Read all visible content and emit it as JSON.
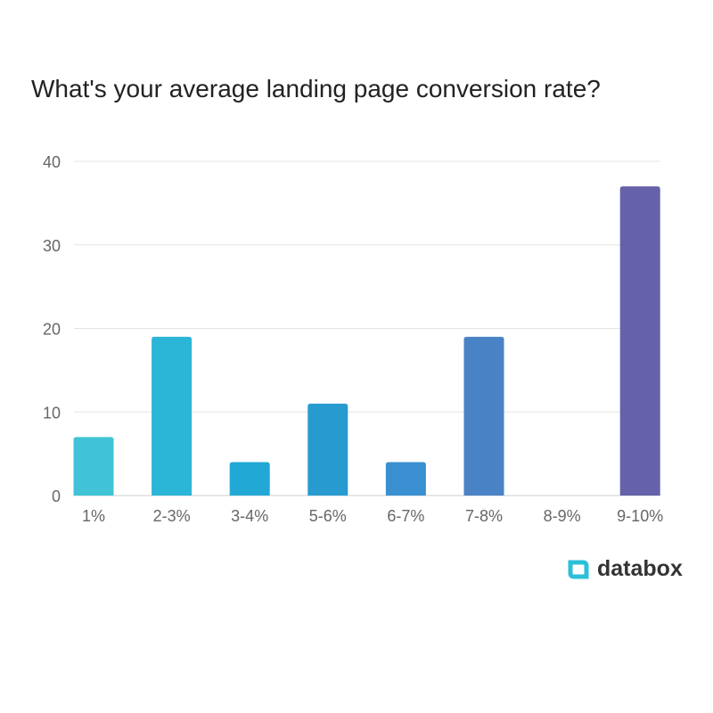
{
  "chart_data": {
    "type": "bar",
    "title": "What's your average landing page conversion rate?",
    "categories": [
      "1%",
      "2-3%",
      "3-4%",
      "5-6%",
      "6-7%",
      "7-8%",
      "8-9%",
      "9-10%"
    ],
    "values": [
      7,
      19,
      4,
      11,
      4,
      19,
      0,
      37
    ],
    "colors": [
      "#40c3d6",
      "#2bb5d6",
      "#22a8d4",
      "#279bd0",
      "#3a8fd0",
      "#4a82c6",
      "#5870b8",
      "#6561aa"
    ],
    "ylim": [
      0,
      40
    ],
    "yticks": [
      0,
      10,
      20,
      30,
      40
    ],
    "grid": true,
    "xlabel": "",
    "ylabel": ""
  },
  "brand": {
    "name": "databox",
    "color": "#2bbfd8"
  }
}
